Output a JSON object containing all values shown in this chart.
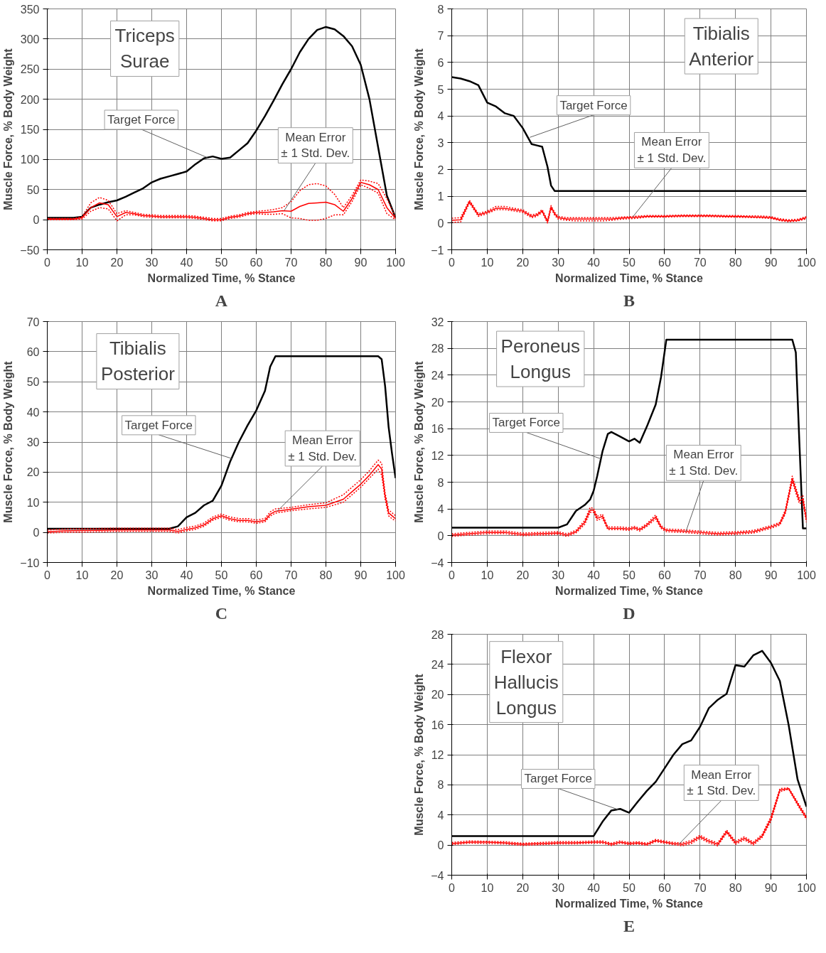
{
  "chart_data": [
    {
      "type": "line",
      "title": "Triceps\nSurae",
      "xlabel": "Normalized Time, % Stance",
      "ylabel": "Muscle Force, % Body Weight",
      "grid": true,
      "xlim": [
        0,
        100
      ],
      "ylim": [
        -50,
        350
      ],
      "xticks": [
        0,
        10,
        20,
        30,
        40,
        50,
        60,
        70,
        80,
        90,
        100
      ],
      "yticks": [
        -50,
        0,
        50,
        100,
        150,
        200,
        250,
        300,
        350
      ],
      "x": [
        0,
        2.5,
        5,
        7.5,
        10,
        12.5,
        15,
        17.5,
        20,
        22.5,
        25,
        27.5,
        30,
        32.5,
        35,
        37.5,
        40,
        42.5,
        45,
        47.5,
        50,
        52.5,
        55,
        57.5,
        60,
        62.5,
        65,
        67.5,
        70,
        72.5,
        75,
        77.5,
        80,
        82.5,
        85,
        87.5,
        90,
        92.5,
        95,
        97.5,
        100
      ],
      "series": [
        {
          "color": "#000000",
          "values": [
            3,
            3,
            3,
            3,
            5,
            20,
            25,
            29,
            32,
            38,
            45,
            52,
            62,
            68,
            72,
            76,
            80,
            92,
            102,
            105,
            101,
            103,
            115,
            127,
            148,
            172,
            198,
            225,
            250,
            278,
            300,
            315,
            320,
            316,
            305,
            288,
            257,
            200,
            120,
            40,
            3
          ]
        },
        {
          "color": "#ff0000",
          "values": [
            1,
            1,
            1,
            1,
            3,
            20,
            28,
            25,
            5,
            12,
            10,
            7,
            6,
            5,
            5,
            5,
            5,
            4,
            2,
            0,
            0,
            4,
            6,
            10,
            12,
            12,
            13,
            15,
            14,
            22,
            27,
            28,
            29,
            25,
            14,
            35,
            62,
            58,
            50,
            20,
            2
          ]
        },
        {
          "color": "#ff0000",
          "line_style": "dotted",
          "values": [
            2,
            2,
            2,
            2,
            5,
            28,
            37,
            32,
            10,
            15,
            12,
            9,
            8,
            7,
            7,
            7,
            7,
            6,
            4,
            2,
            2,
            6,
            8,
            12,
            14,
            15,
            17,
            20,
            30,
            48,
            58,
            60,
            56,
            42,
            20,
            40,
            66,
            64,
            60,
            35,
            4
          ]
        },
        {
          "color": "#ff0000",
          "line_style": "dotted",
          "values": [
            0,
            0,
            0,
            0,
            1,
            14,
            20,
            18,
            -2,
            8,
            8,
            5,
            4,
            3,
            3,
            3,
            3,
            2,
            0,
            -2,
            -2,
            2,
            4,
            8,
            10,
            9,
            9,
            10,
            3,
            2,
            -1,
            -1,
            2,
            8,
            8,
            30,
            58,
            52,
            44,
            10,
            0
          ]
        }
      ],
      "annotations": [
        "A",
        {
          "text": "Target Force",
          "x": 46,
          "y": 103
        },
        {
          "text": "Mean Error\n± 1 Std. Dev.",
          "x": 68,
          "y": 15
        }
      ]
    },
    {
      "type": "line",
      "title": "Tibialis\nAnterior",
      "xlabel": "Normalized Time, % Stance",
      "ylabel": "Muscle Force, % Body Weight",
      "grid": true,
      "xlim": [
        0,
        100
      ],
      "ylim": [
        -1,
        8
      ],
      "xticks": [
        0,
        10,
        20,
        30,
        40,
        50,
        60,
        70,
        80,
        90,
        100
      ],
      "yticks": [
        -1,
        0,
        1,
        2,
        3,
        4,
        5,
        6,
        7,
        8
      ],
      "x": [
        0,
        2.5,
        5,
        7.5,
        10,
        12.5,
        15,
        17.5,
        20,
        22.5,
        24,
        25.5,
        27,
        28,
        29,
        30,
        32.5,
        35,
        37.5,
        40,
        42.5,
        45,
        47.5,
        50,
        52.5,
        55,
        57.5,
        60,
        62.5,
        65,
        67.5,
        70,
        72.5,
        75,
        77.5,
        80,
        82.5,
        85,
        87.5,
        90,
        92.5,
        95,
        97.5,
        100
      ],
      "series": [
        {
          "color": "#000000",
          "values": [
            5.45,
            5.4,
            5.3,
            5.15,
            4.5,
            4.35,
            4.1,
            4.0,
            3.55,
            2.95,
            2.9,
            2.85,
            2.1,
            1.4,
            1.2,
            1.2,
            1.2,
            1.2,
            1.2,
            1.2,
            1.2,
            1.2,
            1.2,
            1.2,
            1.2,
            1.2,
            1.2,
            1.2,
            1.2,
            1.2,
            1.2,
            1.2,
            1.2,
            1.2,
            1.2,
            1.2,
            1.2,
            1.2,
            1.2,
            1.2,
            1.2,
            1.2,
            1.2,
            1.2
          ]
        },
        {
          "color": "#ff0000",
          "values": [
            0.1,
            0.12,
            0.8,
            0.3,
            0.4,
            0.55,
            0.55,
            0.5,
            0.45,
            0.25,
            0.3,
            0.45,
            0.05,
            0.6,
            0.35,
            0.2,
            0.15,
            0.15,
            0.15,
            0.15,
            0.15,
            0.15,
            0.18,
            0.2,
            0.22,
            0.25,
            0.25,
            0.25,
            0.26,
            0.27,
            0.27,
            0.27,
            0.27,
            0.26,
            0.25,
            0.25,
            0.24,
            0.23,
            0.22,
            0.2,
            0.12,
            0.08,
            0.1,
            0.2
          ]
        },
        {
          "color": "#ff0000",
          "line_style": "dotted",
          "values": [
            0.18,
            0.2,
            0.85,
            0.35,
            0.45,
            0.62,
            0.62,
            0.55,
            0.5,
            0.3,
            0.35,
            0.5,
            0.1,
            0.65,
            0.4,
            0.25,
            0.2,
            0.2,
            0.2,
            0.2,
            0.2,
            0.2,
            0.22,
            0.24,
            0.26,
            0.28,
            0.28,
            0.28,
            0.29,
            0.3,
            0.3,
            0.3,
            0.3,
            0.29,
            0.28,
            0.28,
            0.27,
            0.27,
            0.26,
            0.24,
            0.16,
            0.12,
            0.14,
            0.24
          ]
        },
        {
          "color": "#ff0000",
          "line_style": "dotted",
          "values": [
            0.02,
            0.04,
            0.75,
            0.25,
            0.35,
            0.5,
            0.5,
            0.45,
            0.4,
            0.2,
            0.25,
            0.4,
            0.0,
            0.55,
            0.3,
            0.15,
            0.1,
            0.08,
            0.08,
            0.08,
            0.08,
            0.1,
            0.14,
            0.16,
            0.18,
            0.22,
            0.22,
            0.22,
            0.23,
            0.24,
            0.24,
            0.24,
            0.24,
            0.23,
            0.22,
            0.22,
            0.21,
            0.2,
            0.19,
            0.17,
            0.09,
            0.05,
            0.07,
            0.16
          ]
        }
      ],
      "annotations": [
        "B",
        {
          "text": "Target Force",
          "x": 22,
          "y": 3.2
        },
        {
          "text": "Mean Error\n± 1 Std. Dev.",
          "x": 51,
          "y": 0.22
        }
      ]
    },
    {
      "type": "line",
      "title": "Tibialis\nPosterior",
      "xlabel": "Normalized Time, % Stance",
      "ylabel": "Muscle Force, % Body Weight",
      "grid": true,
      "xlim": [
        0,
        100
      ],
      "ylim": [
        -10,
        70
      ],
      "xticks": [
        0,
        10,
        20,
        30,
        40,
        50,
        60,
        70,
        80,
        90,
        100
      ],
      "yticks": [
        -10,
        0,
        10,
        20,
        30,
        40,
        50,
        60,
        70
      ],
      "x": [
        0,
        5,
        10,
        15,
        20,
        25,
        30,
        35,
        37.5,
        40,
        42.5,
        45,
        47.5,
        50,
        52.5,
        55,
        57.5,
        60,
        62.5,
        64,
        65.5,
        70,
        75,
        80,
        85,
        87.5,
        90,
        92.5,
        95,
        96,
        97,
        98,
        99,
        100
      ],
      "series": [
        {
          "color": "#000000",
          "values": [
            1.2,
            1.2,
            1.2,
            1.2,
            1.2,
            1.2,
            1.2,
            1.2,
            2,
            5,
            6.5,
            9,
            10.5,
            15.5,
            23.5,
            30,
            35.5,
            40.5,
            47,
            55,
            58.5,
            58.5,
            58.5,
            58.5,
            58.5,
            58.5,
            58.5,
            58.5,
            58.5,
            57.5,
            48.5,
            35,
            26,
            18
          ]
        },
        {
          "color": "#ff0000",
          "values": [
            0.2,
            0.5,
            0.6,
            0.7,
            0.8,
            0.8,
            0.8,
            0.8,
            0.3,
            1,
            1.5,
            2.5,
            4.5,
            5.5,
            4.5,
            4,
            4,
            3.5,
            4,
            6,
            7,
            7.7,
            8.5,
            9,
            11,
            13.5,
            16,
            19,
            22.5,
            21,
            12,
            6.5,
            5.5,
            4.5
          ]
        },
        {
          "color": "#ff0000",
          "line_style": "dotted",
          "values": [
            0.8,
            1.1,
            1.2,
            1.3,
            1.4,
            1.4,
            1.4,
            1.4,
            0.9,
            1.6,
            2.1,
            3.1,
            5.1,
            6.1,
            5.1,
            4.6,
            4.6,
            4.1,
            4.6,
            6.8,
            7.8,
            8.3,
            9.2,
            9.8,
            12.5,
            15,
            17.5,
            20.5,
            24,
            23,
            13,
            7.5,
            6.5,
            5.5
          ]
        },
        {
          "color": "#ff0000",
          "line_style": "dotted",
          "values": [
            -0.2,
            0,
            0.1,
            0.2,
            0.3,
            0.3,
            0.3,
            0.3,
            -0.2,
            0.5,
            1,
            2,
            4,
            5,
            4,
            3.5,
            3.5,
            3,
            3.5,
            5.4,
            6.4,
            7.2,
            7.8,
            8.3,
            10,
            12.5,
            15,
            18,
            21,
            19,
            11,
            5.5,
            4.5,
            3.8
          ]
        }
      ],
      "annotations": [
        "C",
        {
          "text": "Target Force",
          "x": 53,
          "y": 24.5
        },
        {
          "text": "Mean Error\n± 1 Std. Dev.",
          "x": 66,
          "y": 7
        }
      ]
    },
    {
      "type": "line",
      "title": "Peroneus\nLongus",
      "xlabel": "Normalized Time, % Stance",
      "ylabel": "Muscle Force, % Body Weight",
      "grid": true,
      "xlim": [
        0,
        100
      ],
      "ylim": [
        -4,
        32
      ],
      "xticks": [
        0,
        10,
        20,
        30,
        40,
        50,
        60,
        70,
        80,
        90,
        100
      ],
      "yticks": [
        -4,
        0,
        4,
        8,
        12,
        16,
        20,
        24,
        28,
        32
      ],
      "x": [
        0,
        5,
        10,
        15,
        20,
        25,
        30,
        32.5,
        35,
        37.5,
        39,
        40,
        41,
        42.5,
        44,
        45,
        47.5,
        50,
        51.5,
        53,
        55,
        57.5,
        59,
        60.5,
        65,
        70,
        75,
        80,
        85,
        90,
        92.5,
        94,
        96,
        97,
        98,
        99,
        100
      ],
      "series": [
        {
          "color": "#000000",
          "values": [
            1.2,
            1.2,
            1.2,
            1.2,
            1.2,
            1.2,
            1.2,
            1.7,
            3.7,
            4.6,
            5.4,
            6.7,
            8.9,
            12.6,
            15.2,
            15.5,
            14.8,
            14.1,
            14.5,
            13.9,
            16.3,
            19.6,
            23.7,
            29.3,
            29.3,
            29.3,
            29.3,
            29.3,
            29.3,
            29.3,
            29.3,
            29.3,
            29.3,
            27.4,
            14,
            1.1,
            1.1
          ]
        },
        {
          "color": "#ff0000",
          "values": [
            0.1,
            0.3,
            0.5,
            0.5,
            0.2,
            0.3,
            0.4,
            0.1,
            0.6,
            2,
            3.8,
            3.8,
            2.6,
            2.9,
            1.1,
            1.1,
            1.1,
            1.0,
            1.2,
            0.9,
            1.6,
            2.8,
            1.3,
            0.8,
            0.7,
            0.5,
            0.3,
            0.4,
            0.6,
            1.3,
            1.8,
            3.5,
            8.5,
            6.8,
            5.2,
            5.5,
            2.3
          ]
        },
        {
          "color": "#ff0000",
          "line_style": "dotted",
          "values": [
            0.3,
            0.5,
            0.7,
            0.7,
            0.4,
            0.5,
            0.6,
            0.3,
            0.8,
            2.3,
            4.2,
            4.1,
            2.9,
            3.2,
            1.3,
            1.3,
            1.3,
            1.2,
            1.4,
            1.1,
            1.8,
            3.1,
            1.5,
            1.0,
            0.9,
            0.7,
            0.5,
            0.6,
            0.8,
            1.5,
            2.0,
            3.8,
            8.9,
            7.2,
            5.6,
            6.0,
            2.6
          ]
        },
        {
          "color": "#ff0000",
          "line_style": "dotted",
          "values": [
            -0.1,
            0.1,
            0.3,
            0.3,
            0,
            0.1,
            0.2,
            -0.1,
            0.4,
            1.7,
            3.5,
            3.5,
            2.3,
            2.6,
            0.9,
            0.9,
            0.9,
            0.8,
            1.0,
            0.7,
            1.4,
            2.5,
            1.1,
            0.6,
            0.5,
            0.3,
            0.1,
            0.2,
            0.4,
            1.1,
            1.6,
            3.2,
            8.1,
            6.4,
            4.8,
            5.0,
            2.0
          ]
        }
      ],
      "annotations": [
        "D",
        {
          "text": "Target Force",
          "x": 42,
          "y": 11.5
        },
        {
          "text": "Mean Error\n± 1 Std. Dev.",
          "x": 66,
          "y": 0.6
        }
      ]
    },
    {
      "type": "line",
      "title": "Flexor\nHallucis\nLongus",
      "xlabel": "Normalized Time, % Stance",
      "ylabel": "Muscle Force, % Body Weight",
      "grid": true,
      "xlim": [
        0,
        100
      ],
      "ylim": [
        -4,
        28
      ],
      "xticks": [
        0,
        10,
        20,
        30,
        40,
        50,
        60,
        70,
        80,
        90,
        100
      ],
      "yticks": [
        -4,
        0,
        4,
        8,
        12,
        16,
        20,
        24,
        28
      ],
      "x": [
        0,
        5,
        10,
        15,
        20,
        25,
        30,
        35,
        40,
        42.5,
        45,
        47.5,
        50,
        52.5,
        55,
        57.5,
        60,
        62.5,
        65,
        67.5,
        70,
        72.5,
        75,
        77.5,
        80,
        82.5,
        85,
        87.5,
        90,
        92.5,
        95,
        97.5,
        100
      ],
      "series": [
        {
          "color": "#000000",
          "values": [
            1.2,
            1.2,
            1.2,
            1.2,
            1.2,
            1.2,
            1.2,
            1.2,
            1.2,
            3.1,
            4.6,
            4.8,
            4.3,
            5.8,
            7.2,
            8.4,
            10.2,
            12,
            13.4,
            13.9,
            15.7,
            18.2,
            19.3,
            20.1,
            23.9,
            23.7,
            25.2,
            25.8,
            24.2,
            21.8,
            15.9,
            8.7,
            5.1
          ]
        },
        {
          "color": "#ff0000",
          "values": [
            0.2,
            0.4,
            0.4,
            0.3,
            0.1,
            0.2,
            0.3,
            0.3,
            0.4,
            0.4,
            0.1,
            0.4,
            0.2,
            0.3,
            0.1,
            0.6,
            0.4,
            0.2,
            0.1,
            0.4,
            1.1,
            0.5,
            0.1,
            1.8,
            0.3,
            0.9,
            0.2,
            1.2,
            3.5,
            7.3,
            7.5,
            5.5,
            3.6
          ]
        },
        {
          "color": "#ff0000",
          "line_style": "dotted",
          "values": [
            0.35,
            0.55,
            0.5,
            0.45,
            0.25,
            0.35,
            0.45,
            0.45,
            0.55,
            0.55,
            0.25,
            0.55,
            0.35,
            0.45,
            0.25,
            0.75,
            0.55,
            0.35,
            0.3,
            0.6,
            1.3,
            0.7,
            0.3,
            2.0,
            0.5,
            1.1,
            0.4,
            1.4,
            3.8,
            7.5,
            7.6,
            5.7,
            3.8
          ]
        },
        {
          "color": "#ff0000",
          "line_style": "dotted",
          "values": [
            0.05,
            0.25,
            0.2,
            0.15,
            -0.05,
            0.05,
            0.15,
            0.15,
            0.25,
            0.25,
            -0.05,
            0.25,
            0.05,
            0.15,
            -0.05,
            0.45,
            0.25,
            0.05,
            -0.1,
            0.2,
            0.9,
            0.3,
            -0.1,
            1.6,
            0.1,
            0.7,
            0,
            1.0,
            3.2,
            7.1,
            7.4,
            5.3,
            3.4
          ]
        }
      ],
      "annotations": [
        "E",
        {
          "text": "Target Force",
          "x": 47,
          "y": 4.7
        },
        {
          "text": "Mean Error\n± 1 Std. Dev.",
          "x": 64,
          "y": 0.1
        }
      ]
    }
  ]
}
